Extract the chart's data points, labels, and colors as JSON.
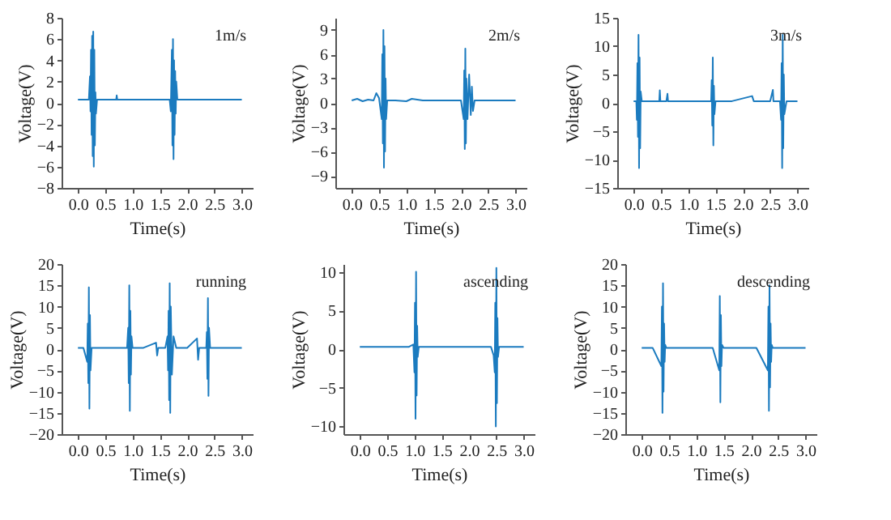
{
  "chart_data": [
    {
      "type": "line",
      "xlabel": "Time(s)",
      "ylabel": "Voltage(V)",
      "annotations": [
        "1m/s"
      ],
      "xlim": [
        -0.3,
        3.2
      ],
      "ylim": [
        -8,
        8
      ],
      "yticks": [
        -8,
        -6,
        -4,
        -2,
        0,
        2,
        4,
        6,
        8
      ],
      "xticks": [
        {
          "value": 0,
          "label": "0.0"
        },
        0.5,
        {
          "value": 1,
          "label": "1.0"
        },
        1.5,
        {
          "value": 2,
          "label": "2.0"
        },
        2.5,
        {
          "value": 3,
          "label": "3.0"
        }
      ],
      "series": [
        {
          "color": "#1b7bbf",
          "x": [
            0,
            0.1,
            0.2,
            0.22,
            0.23,
            0.24,
            0.25,
            0.26,
            0.27,
            0.28,
            0.29,
            0.3,
            0.31,
            0.32,
            0.33,
            0.35,
            0.5,
            0.7,
            0.71,
            0.72,
            0.9,
            1.2,
            1.5,
            1.68,
            1.7,
            1.72,
            1.73,
            1.74,
            1.75,
            1.76,
            1.77,
            1.78,
            1.79,
            1.8,
            1.82,
            1.84,
            1.86,
            1.9,
            2.2,
            2.5,
            2.8,
            3.0
          ],
          "values": [
            0.3,
            0.3,
            0.3,
            2.5,
            -0.8,
            5,
            -3,
            6.3,
            -5,
            6.7,
            -6,
            5,
            -4,
            1,
            -1,
            0.3,
            0.3,
            0.3,
            0.7,
            0.3,
            0.3,
            0.3,
            0.3,
            0.3,
            -0.8,
            5,
            -4,
            6,
            -5.3,
            4,
            -3,
            3,
            -1,
            2,
            0.3,
            0.3,
            0.3,
            0.3,
            0.3,
            0.3,
            0.3,
            0.3
          ]
        }
      ]
    },
    {
      "type": "line",
      "xlabel": "Time(s)",
      "ylabel": "Voltage(V)",
      "annotations": [
        "2m/s"
      ],
      "xlim": [
        -0.3,
        3.2
      ],
      "ylim": [
        -10.5,
        10.5
      ],
      "yticks": [
        -9,
        -6,
        -3,
        0,
        3,
        6,
        9
      ],
      "xticks": [
        {
          "value": 0,
          "label": "0.0"
        },
        0.5,
        {
          "value": 1,
          "label": "1.0"
        },
        1.5,
        {
          "value": 2,
          "label": "2.0"
        },
        2.5,
        {
          "value": 3,
          "label": "3.0"
        }
      ],
      "series": [
        {
          "color": "#1b7bbf",
          "x": [
            0,
            0.1,
            0.2,
            0.3,
            0.4,
            0.45,
            0.5,
            0.55,
            0.56,
            0.57,
            0.58,
            0.59,
            0.6,
            0.61,
            0.62,
            0.63,
            0.65,
            0.8,
            1.0,
            1.1,
            1.3,
            1.5,
            1.8,
            2.0,
            2.05,
            2.06,
            2.07,
            2.08,
            2.09,
            2.1,
            2.12,
            2.15,
            2.18,
            2.2,
            2.22,
            2.25,
            2.4,
            2.6,
            2.8,
            3.0
          ],
          "values": [
            0.3,
            0.5,
            0.2,
            0.4,
            0.3,
            1.2,
            0.6,
            -2,
            6,
            -5,
            9,
            -8,
            7,
            -6,
            3,
            -2,
            0.3,
            0.3,
            0.2,
            0.5,
            0.3,
            0.3,
            0.3,
            0.3,
            -2,
            4,
            -5.7,
            6.7,
            -5,
            3,
            -2,
            3.5,
            -1.5,
            2,
            -1,
            0.3,
            0.3,
            0.3,
            0.3,
            0.3
          ]
        }
      ]
    },
    {
      "type": "line",
      "xlabel": "Time(s)",
      "ylabel": "Voltage(V)",
      "annotations": [
        "3m/s"
      ],
      "xlim": [
        -0.3,
        3.2
      ],
      "ylim": [
        -15,
        15
      ],
      "yticks": [
        -15,
        -10,
        -5,
        0,
        5,
        10,
        15
      ],
      "xticks": [
        {
          "value": 0,
          "label": "0.0"
        },
        0.5,
        {
          "value": 1,
          "label": "1.0"
        },
        1.5,
        {
          "value": 2,
          "label": "2.0"
        },
        2.5,
        {
          "value": 3,
          "label": "3.0"
        }
      ],
      "series": [
        {
          "color": "#1b7bbf",
          "x": [
            0,
            0.05,
            0.06,
            0.07,
            0.08,
            0.09,
            0.1,
            0.11,
            0.12,
            0.13,
            0.15,
            0.3,
            0.47,
            0.48,
            0.49,
            0.6,
            0.62,
            0.63,
            0.9,
            1.2,
            1.42,
            1.43,
            1.44,
            1.45,
            1.46,
            1.47,
            1.48,
            1.5,
            1.8,
            2.17,
            2.2,
            2.5,
            2.55,
            2.56,
            2.68,
            2.7,
            2.71,
            2.72,
            2.73,
            2.74,
            2.75,
            2.76,
            2.8,
            3.0
          ],
          "values": [
            0.3,
            0.3,
            -3,
            7,
            -6,
            12,
            -11.5,
            8,
            -8,
            2,
            0.3,
            0.3,
            0.3,
            2.2,
            0.3,
            0.3,
            1.6,
            0.3,
            0.3,
            0.3,
            0.3,
            4,
            -4,
            8,
            -7.5,
            3,
            -2,
            0.3,
            0.3,
            1.2,
            0.3,
            0.3,
            2.3,
            0.3,
            0.3,
            -3,
            7,
            -11.5,
            12,
            -8,
            5,
            -2,
            0.3,
            0.3
          ]
        }
      ]
    },
    {
      "type": "line",
      "xlabel": "Time(s)",
      "ylabel": "Voltage(V)",
      "annotations": [
        "running"
      ],
      "xlim": [
        -0.3,
        3.2
      ],
      "ylim": [
        -20,
        20
      ],
      "yticks": [
        -20,
        -15,
        -10,
        -5,
        0,
        5,
        10,
        15,
        20
      ],
      "xticks": [
        {
          "value": 0,
          "label": "0.0"
        },
        0.5,
        {
          "value": 1,
          "label": "1.0"
        },
        1.5,
        {
          "value": 2,
          "label": "2.0"
        },
        2.5,
        {
          "value": 3,
          "label": "3.0"
        }
      ],
      "series": [
        {
          "color": "#1b7bbf",
          "x": [
            0,
            0.1,
            0.17,
            0.18,
            0.19,
            0.2,
            0.21,
            0.22,
            0.23,
            0.25,
            0.4,
            0.6,
            0.9,
            0.92,
            0.93,
            0.94,
            0.95,
            0.96,
            0.97,
            0.98,
            1.0,
            1.2,
            1.43,
            1.45,
            1.47,
            1.6,
            1.64,
            1.65,
            1.66,
            1.67,
            1.68,
            1.69,
            1.7,
            1.72,
            1.75,
            1.8,
            2.0,
            2.18,
            2.2,
            2.22,
            2.35,
            2.36,
            2.37,
            2.38,
            2.39,
            2.4,
            2.42,
            2.6,
            2.8,
            3.0
          ],
          "values": [
            0.3,
            0.3,
            -3,
            6,
            -8,
            14.5,
            -14,
            8,
            -5,
            0.3,
            0.3,
            0.3,
            0.3,
            5,
            -8,
            15,
            -14.5,
            9,
            -6,
            3,
            0.3,
            0.3,
            1.5,
            -1.5,
            0.3,
            0.3,
            3,
            -5,
            9,
            -12,
            15.5,
            -15,
            10,
            -6,
            3,
            0.3,
            0.3,
            2.5,
            -2.5,
            0.3,
            0.3,
            4,
            -7,
            12,
            -11,
            5,
            0.3,
            0.3,
            0.3,
            0.3
          ]
        }
      ]
    },
    {
      "type": "line",
      "xlabel": "Time(s)",
      "ylabel": "Voltage(V)",
      "annotations": [
        "ascending"
      ],
      "xlim": [
        -0.3,
        3.2
      ],
      "ylim": [
        -11,
        11
      ],
      "yticks": [
        -10,
        -5,
        0,
        5,
        10
      ],
      "xticks": [
        {
          "value": 0,
          "label": "0.0"
        },
        0.5,
        {
          "value": 1,
          "label": "1.0"
        },
        1.5,
        {
          "value": 2,
          "label": "2.0"
        },
        2.5,
        {
          "value": 3,
          "label": "3.0"
        }
      ],
      "series": [
        {
          "color": "#1b7bbf",
          "x": [
            0,
            0.3,
            0.6,
            0.9,
            0.98,
            1.0,
            1.01,
            1.02,
            1.03,
            1.04,
            1.05,
            1.06,
            1.08,
            1.3,
            1.6,
            1.9,
            2.2,
            2.4,
            2.45,
            2.47,
            2.48,
            2.49,
            2.5,
            2.51,
            2.52,
            2.53,
            2.55,
            2.7,
            3.0
          ],
          "values": [
            0.3,
            0.3,
            0.3,
            0.3,
            0.6,
            -3,
            6,
            -9,
            10,
            -6,
            3,
            -1,
            0.3,
            0.3,
            0.3,
            0.3,
            0.3,
            0.3,
            -0.8,
            -3,
            6,
            -10,
            10.5,
            -7,
            4,
            -1,
            0.3,
            0.3,
            0.3
          ]
        }
      ]
    },
    {
      "type": "line",
      "xlabel": "Time(s)",
      "ylabel": "Voltage(V)",
      "annotations": [
        "descending"
      ],
      "xlim": [
        -0.3,
        3.2
      ],
      "ylim": [
        -20,
        20
      ],
      "yticks": [
        -20,
        -15,
        -10,
        -5,
        0,
        5,
        10,
        15,
        20
      ],
      "xticks": [
        {
          "value": 0,
          "label": "0.0"
        },
        0.5,
        {
          "value": 1,
          "label": "1.0"
        },
        1.5,
        {
          "value": 2,
          "label": "2.0"
        },
        2.5,
        {
          "value": 3,
          "label": "3.0"
        }
      ],
      "series": [
        {
          "color": "#1b7bbf",
          "x": [
            0,
            0.2,
            0.36,
            0.37,
            0.38,
            0.39,
            0.4,
            0.41,
            0.42,
            0.43,
            0.45,
            0.7,
            1.0,
            1.3,
            1.42,
            1.43,
            1.44,
            1.45,
            1.46,
            1.47,
            1.5,
            1.8,
            2.1,
            2.31,
            2.32,
            2.33,
            2.34,
            2.35,
            2.36,
            2.37,
            2.38,
            2.4,
            2.6,
            3.0
          ],
          "values": [
            0.3,
            0.3,
            -4,
            10,
            -15,
            15.5,
            -10,
            6,
            -3,
            1,
            0.3,
            0.3,
            0.3,
            0.3,
            -5,
            12.5,
            -12.5,
            8,
            -4,
            1,
            0.3,
            0.3,
            0.3,
            -5,
            10,
            -14.5,
            15,
            -9,
            6,
            -3,
            1,
            0.3,
            0.3,
            0.3
          ]
        }
      ]
    }
  ]
}
